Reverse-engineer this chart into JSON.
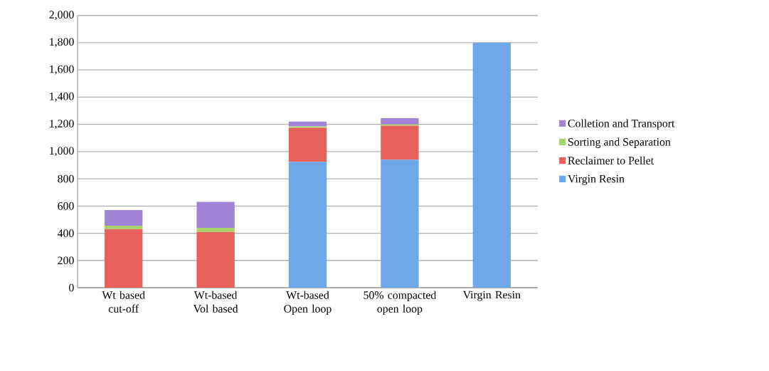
{
  "chart_data": {
    "type": "bar",
    "stacked": true,
    "categories": [
      "Wt based cut-off",
      "Wt-based Vol based",
      "Wt-based Open loop",
      "50% compacted open loop",
      "Virgin Resin"
    ],
    "series": [
      {
        "name": "Virgin Resin",
        "color": "#6fa8e8",
        "values": [
          0,
          0,
          925,
          940,
          1800
        ]
      },
      {
        "name": "Reclaimer to Pellet",
        "color": "#e8605a",
        "values": [
          430,
          410,
          250,
          250,
          0
        ]
      },
      {
        "name": "Sorting and Separation",
        "color": "#a6d46a",
        "values": [
          25,
          30,
          10,
          10,
          0
        ]
      },
      {
        "name": "Colletion and Transport",
        "color": "#a184d6",
        "values": [
          115,
          190,
          35,
          45,
          0
        ]
      }
    ],
    "ylim": [
      0,
      2000
    ],
    "yticks": [
      0,
      200,
      400,
      600,
      800,
      {
        "value": 1000,
        "label": "1,000"
      },
      {
        "value": 1200,
        "label": "1,200"
      },
      {
        "value": 1400,
        "label": "1,400"
      },
      {
        "value": 1600,
        "label": "1,600"
      },
      {
        "value": 1800,
        "label": "1,800"
      },
      {
        "value": 2000,
        "label": "2,000"
      }
    ],
    "grid": "y",
    "legend": "right"
  }
}
